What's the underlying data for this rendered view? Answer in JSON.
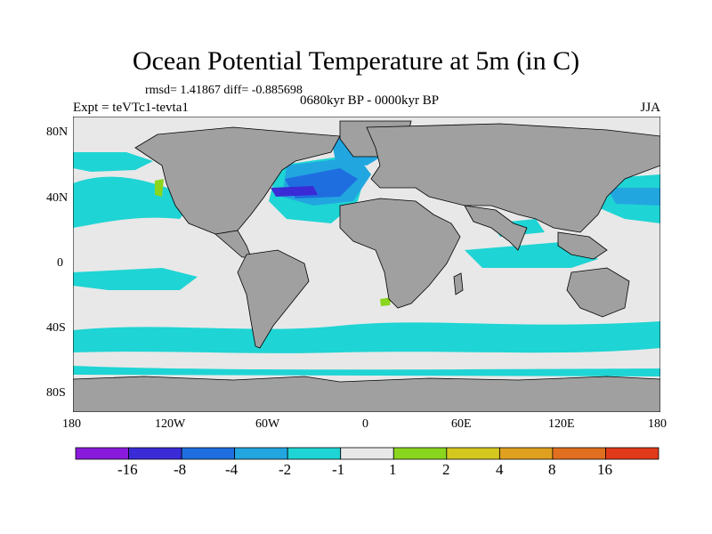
{
  "title": "Ocean Potential Temperature at 5m (in C)",
  "stats": "rmsd= 1.41867 diff= -0.885698",
  "subtitle": "0680kyr BP - 0000kyr BP",
  "experiment": "Expt = teVTc1-tevta1",
  "season": "JJA",
  "lat_labels": [
    "80N",
    "40N",
    "0",
    "40S",
    "80S"
  ],
  "lon_labels": [
    "180",
    "120W",
    "60W",
    "0",
    "60E",
    "120E",
    "180"
  ],
  "colorbar": {
    "colors": [
      "#8a1adb",
      "#3b2bd6",
      "#1f6ee0",
      "#22a6e0",
      "#1fd4d4",
      "#e8e8e8",
      "#8ad61f",
      "#d4c81f",
      "#e0a01f",
      "#e0701f",
      "#e03a1a"
    ],
    "labels": [
      "-16",
      "-8",
      "-4",
      "-2",
      "-1",
      "1",
      "2",
      "4",
      "8",
      "16"
    ]
  },
  "map_colors": {
    "land": "#a0a0a0",
    "ocean_neutral": "#e8e8e8",
    "cyan": "#1fd4d4",
    "light_blue": "#22a6e0",
    "blue": "#1f6ee0",
    "dark_blue": "#3b2bd6",
    "green": "#8ad61f"
  }
}
